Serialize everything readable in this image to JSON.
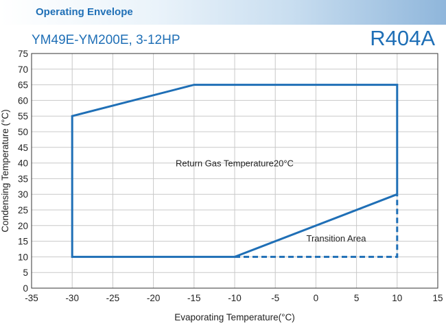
{
  "header": {
    "title": "Operating Envelope"
  },
  "chart_data": {
    "type": "line",
    "title": "YM49E-YM200E, 3-12HP",
    "refrigerant": "R404A",
    "xlabel": "Evaporating Temperature(°C)",
    "ylabel": "Condensing Temperature (°C)",
    "xlim": [
      -35,
      15
    ],
    "ylim": [
      0,
      75
    ],
    "x_ticks": [
      -35,
      -30,
      -25,
      -20,
      -15,
      -10,
      -5,
      0,
      5,
      10,
      15
    ],
    "y_ticks": [
      0,
      5,
      10,
      15,
      20,
      25,
      30,
      35,
      40,
      45,
      50,
      55,
      60,
      65,
      70,
      75
    ],
    "grid": true,
    "line_color": "#1f6fb6",
    "series": [
      {
        "name": "envelope",
        "style": "solid",
        "x": [
          10,
          10,
          -15,
          -30,
          -30,
          -10,
          10
        ],
        "y": [
          30,
          65,
          65,
          55,
          10,
          10,
          30
        ]
      },
      {
        "name": "transition-boundary",
        "style": "dashed",
        "x": [
          -10,
          10,
          10
        ],
        "y": [
          10,
          10,
          30
        ]
      }
    ],
    "annotations": [
      {
        "text": "Return Gas Temperature20°C",
        "x": -10,
        "y": 40
      },
      {
        "text": "Transition Area",
        "x": 2.5,
        "y": 16
      }
    ]
  }
}
